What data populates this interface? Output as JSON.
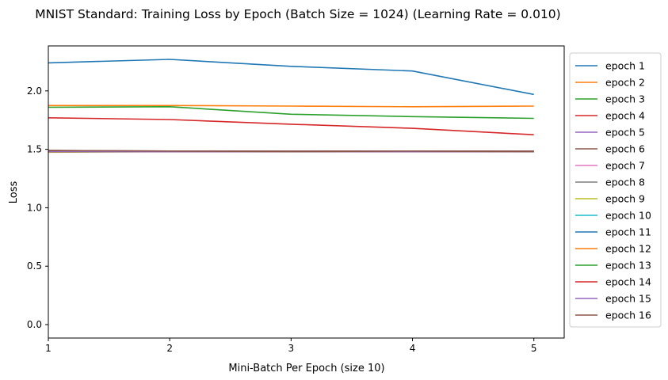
{
  "chart_data": {
    "type": "line",
    "title": "MNIST Standard: Training Loss by Epoch (Batch Size = 1024) (Learning Rate = 0.010)",
    "xlabel": "Mini-Batch Per Epoch (size 10)",
    "ylabel": "Loss",
    "xlim": [
      1,
      5.25
    ],
    "ylim": [
      -0.115,
      2.385
    ],
    "x_ticks": [
      "1",
      "2",
      "3",
      "4",
      "5"
    ],
    "y_ticks": [
      "0.0",
      "0.5",
      "1.0",
      "1.5",
      "2.0"
    ],
    "grid": false,
    "legend_position": "outside-right",
    "x": [
      1,
      2,
      3,
      4,
      5
    ],
    "series": [
      {
        "name": "epoch 1",
        "color": "#1f77b4",
        "values": [
          2.24,
          2.27,
          2.21,
          2.17,
          1.97
        ]
      },
      {
        "name": "epoch 2",
        "color": "#ff7f0e",
        "values": [
          1.875,
          1.875,
          1.87,
          1.865,
          1.87
        ]
      },
      {
        "name": "epoch 3",
        "color": "#2ca02c",
        "values": [
          1.86,
          1.865,
          1.8,
          1.78,
          1.765
        ]
      },
      {
        "name": "epoch 4",
        "color": "#d62728",
        "values": [
          1.77,
          1.755,
          1.715,
          1.68,
          1.625
        ]
      },
      {
        "name": "epoch 5",
        "color": "#9467bd",
        "values": [
          1.485,
          1.48,
          1.48,
          1.485,
          1.485
        ]
      },
      {
        "name": "epoch 6",
        "color": "#8c564b",
        "values": [
          1.49,
          1.485,
          1.485,
          1.485,
          1.485
        ]
      },
      {
        "name": "epoch 7",
        "color": "#e377c2",
        "values": [
          1.48,
          1.48,
          1.48,
          1.48,
          1.48
        ]
      },
      {
        "name": "epoch 8",
        "color": "#7f7f7f",
        "values": [
          1.48,
          1.48,
          1.48,
          1.48,
          1.48
        ]
      },
      {
        "name": "epoch 9",
        "color": "#bcbd22",
        "values": [
          1.475,
          1.48,
          1.48,
          1.48,
          1.48
        ]
      },
      {
        "name": "epoch 10",
        "color": "#17becf",
        "values": [
          1.48,
          1.48,
          1.48,
          1.48,
          1.48
        ]
      },
      {
        "name": "epoch 11",
        "color": "#1f77b4",
        "values": [
          1.48,
          1.48,
          1.48,
          1.48,
          1.48
        ]
      },
      {
        "name": "epoch 12",
        "color": "#ff7f0e",
        "values": [
          1.48,
          1.48,
          1.48,
          1.48,
          1.48
        ]
      },
      {
        "name": "epoch 13",
        "color": "#2ca02c",
        "values": [
          1.48,
          1.48,
          1.48,
          1.48,
          1.48
        ]
      },
      {
        "name": "epoch 14",
        "color": "#d62728",
        "values": [
          1.48,
          1.48,
          1.48,
          1.48,
          1.48
        ]
      },
      {
        "name": "epoch 15",
        "color": "#9467bd",
        "values": [
          1.48,
          1.48,
          1.48,
          1.48,
          1.48
        ]
      },
      {
        "name": "epoch 16",
        "color": "#8c564b",
        "values": [
          1.49,
          1.485,
          1.48,
          1.485,
          1.48
        ]
      }
    ]
  }
}
